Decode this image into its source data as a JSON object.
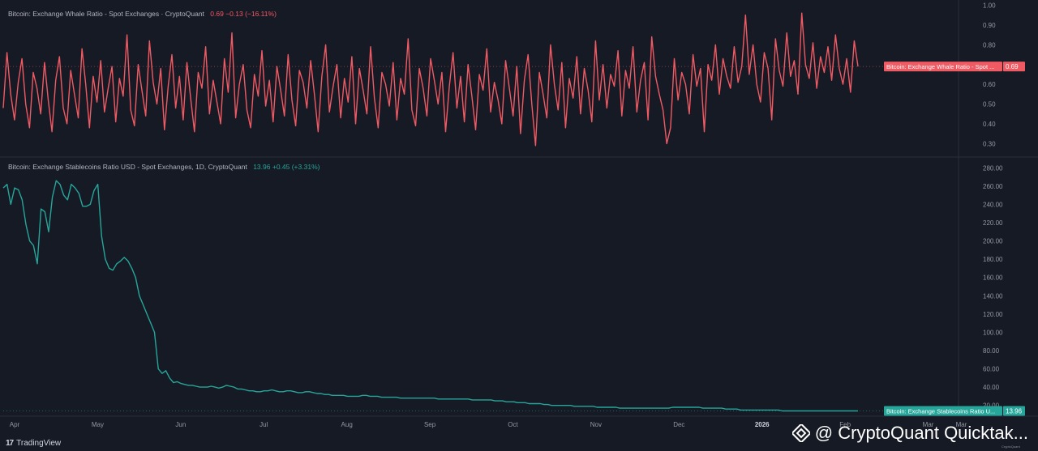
{
  "app": {
    "name": "TradingView"
  },
  "watermark": {
    "text": "@ CryptoQuant Quicktak...",
    "icon": "binance-diamond-icon"
  },
  "credit": {
    "text": "CryptoQuant"
  },
  "colors": {
    "background": "#161a25",
    "whale": "#f05a63",
    "stable": "#26a69a",
    "grid": "#232734",
    "axis_text": "#9598a1"
  },
  "top_pane": {
    "title": "Bitcoin: Exchange Whale Ratio - Spot Exchanges · CryptoQuant",
    "value": "0.69",
    "change": "−0.13 (−16.11%)",
    "price_label": "Bitcoin: Exchange Whale Ratio - Spot ...",
    "price_value": "0.69"
  },
  "bottom_pane": {
    "title": "Bitcoin: Exchange Stablecoins Ratio USD - Spot Exchanges, 1D, CryptoQuant",
    "value": "13.96",
    "change": "+0.45 (+3.31%)",
    "price_label": "Bitcoin: Exchange Stablecoins Ratio U...",
    "price_value": "13.96"
  },
  "chart_data": [
    {
      "type": "line",
      "name": "Bitcoin: Exchange Whale Ratio - Spot Exchanges",
      "ylim": [
        0.24,
        1.01
      ],
      "yticks": [
        "1.00",
        "0.90",
        "0.80",
        "0.70",
        "0.60",
        "0.50",
        "0.40",
        "0.30"
      ],
      "yticks_values": [
        1.0,
        0.9,
        0.8,
        0.7,
        0.6,
        0.5,
        0.4,
        0.3
      ],
      "x_start": "Apr 1",
      "x_end": "Mar 12",
      "last_value": 0.69,
      "values": [
        0.48,
        0.76,
        0.55,
        0.42,
        0.61,
        0.73,
        0.5,
        0.38,
        0.66,
        0.58,
        0.45,
        0.71,
        0.52,
        0.36,
        0.62,
        0.74,
        0.48,
        0.4,
        0.67,
        0.55,
        0.43,
        0.78,
        0.6,
        0.38,
        0.64,
        0.51,
        0.72,
        0.46,
        0.58,
        0.69,
        0.41,
        0.63,
        0.54,
        0.85,
        0.47,
        0.39,
        0.7,
        0.57,
        0.44,
        0.82,
        0.61,
        0.5,
        0.68,
        0.37,
        0.59,
        0.75,
        0.48,
        0.64,
        0.42,
        0.71,
        0.53,
        0.36,
        0.66,
        0.58,
        0.79,
        0.45,
        0.62,
        0.51,
        0.4,
        0.73,
        0.56,
        0.86,
        0.43,
        0.6,
        0.7,
        0.47,
        0.38,
        0.65,
        0.54,
        0.77,
        0.49,
        0.62,
        0.41,
        0.69,
        0.57,
        0.44,
        0.75,
        0.52,
        0.39,
        0.67,
        0.61,
        0.48,
        0.72,
        0.55,
        0.36,
        0.64,
        0.8,
        0.46,
        0.59,
        0.7,
        0.43,
        0.63,
        0.51,
        0.74,
        0.4,
        0.68,
        0.57,
        0.45,
        0.79,
        0.53,
        0.38,
        0.66,
        0.6,
        0.49,
        0.71,
        0.42,
        0.63,
        0.55,
        0.83,
        0.47,
        0.39,
        0.68,
        0.58,
        0.44,
        0.73,
        0.62,
        0.5,
        0.66,
        0.36,
        0.59,
        0.76,
        0.48,
        0.64,
        0.41,
        0.7,
        0.54,
        0.37,
        0.65,
        0.57,
        0.78,
        0.46,
        0.61,
        0.52,
        0.4,
        0.72,
        0.58,
        0.44,
        0.69,
        0.35,
        0.62,
        0.75,
        0.5,
        0.29,
        0.66,
        0.55,
        0.43,
        0.8,
        0.6,
        0.47,
        0.71,
        0.38,
        0.63,
        0.53,
        0.74,
        0.45,
        0.68,
        0.57,
        0.41,
        0.82,
        0.52,
        0.7,
        0.48,
        0.65,
        0.59,
        0.77,
        0.44,
        0.67,
        0.58,
        0.79,
        0.46,
        0.62,
        0.71,
        0.42,
        0.84,
        0.64,
        0.55,
        0.47,
        0.3,
        0.38,
        0.73,
        0.52,
        0.66,
        0.6,
        0.45,
        0.75,
        0.59,
        0.68,
        0.36,
        0.7,
        0.62,
        0.8,
        0.55,
        0.73,
        0.64,
        0.58,
        0.79,
        0.61,
        0.69,
        0.95,
        0.65,
        0.8,
        0.6,
        0.51,
        0.76,
        0.68,
        0.42,
        0.83,
        0.67,
        0.59,
        0.86,
        0.64,
        0.72,
        0.55,
        0.96,
        0.7,
        0.63,
        0.81,
        0.58,
        0.74,
        0.66,
        0.79,
        0.62,
        0.85,
        0.68,
        0.6,
        0.73,
        0.56,
        0.82,
        0.69
      ]
    },
    {
      "type": "line",
      "name": "Bitcoin: Exchange Stablecoins Ratio USD - Spot Exchanges",
      "ylim": [
        10,
        290
      ],
      "yticks": [
        "280.00",
        "260.00",
        "240.00",
        "220.00",
        "200.00",
        "180.00",
        "160.00",
        "140.00",
        "120.00",
        "100.00",
        "80.00",
        "60.00",
        "40.00",
        "20.00"
      ],
      "yticks_values": [
        280,
        260,
        240,
        220,
        200,
        180,
        160,
        140,
        120,
        100,
        80,
        60,
        40,
        20
      ],
      "x_start": "Apr 1",
      "x_end": "Mar 12",
      "last_value": 13.96,
      "values": [
        258,
        262,
        240,
        258,
        256,
        245,
        218,
        200,
        195,
        175,
        235,
        232,
        210,
        248,
        266,
        262,
        250,
        245,
        262,
        258,
        252,
        238,
        238,
        240,
        255,
        262,
        205,
        180,
        170,
        168,
        175,
        178,
        182,
        178,
        170,
        160,
        140,
        130,
        120,
        110,
        100,
        60,
        55,
        58,
        50,
        45,
        46,
        44,
        43,
        42,
        42,
        41,
        40,
        40,
        40,
        41,
        40,
        39,
        40,
        42,
        41,
        40,
        38,
        38,
        37,
        36,
        36,
        35,
        35,
        36,
        36,
        37,
        36,
        35,
        35,
        36,
        36,
        35,
        34,
        34,
        35,
        35,
        34,
        33,
        33,
        32,
        32,
        31,
        31,
        31,
        31,
        30,
        30,
        30,
        30,
        31,
        31,
        30,
        30,
        30,
        29,
        29,
        29,
        29,
        29,
        28,
        28,
        28,
        28,
        28,
        28,
        28,
        28,
        28,
        28,
        27,
        27,
        27,
        27,
        27,
        27,
        27,
        27,
        27,
        26,
        26,
        26,
        26,
        26,
        26,
        25,
        25,
        25,
        24,
        24,
        24,
        23,
        23,
        23,
        22,
        22,
        22,
        22,
        21,
        21,
        20,
        20,
        20,
        20,
        20,
        20,
        19,
        19,
        19,
        19,
        19,
        19,
        18,
        18,
        18,
        18,
        18,
        18,
        17,
        17,
        17,
        17,
        17,
        17,
        17,
        17,
        17,
        17,
        17,
        17,
        17,
        17,
        18,
        18,
        18,
        18,
        18,
        18,
        18,
        18,
        17,
        17,
        17,
        17,
        17,
        17,
        16,
        16,
        16,
        16,
        15,
        15,
        15,
        15,
        15,
        15,
        15,
        15,
        15,
        15,
        15,
        14,
        14,
        14,
        14,
        14,
        14,
        14,
        14,
        14,
        14,
        14,
        14,
        14,
        14,
        14,
        14,
        14,
        14,
        14,
        14,
        13.96
      ]
    }
  ],
  "x_axis": {
    "labels": [
      "Apr",
      "May",
      "Jun",
      "Jul",
      "Aug",
      "Sep",
      "Oct",
      "Nov",
      "Dec",
      "2026",
      "Feb",
      "Mar",
      "Mar"
    ],
    "label_months": [
      0,
      1,
      2,
      3,
      4,
      5,
      6,
      7,
      8,
      9,
      10,
      11,
      11.4
    ],
    "bold": [
      false,
      false,
      false,
      false,
      false,
      false,
      false,
      false,
      false,
      true,
      false,
      false,
      false
    ]
  }
}
